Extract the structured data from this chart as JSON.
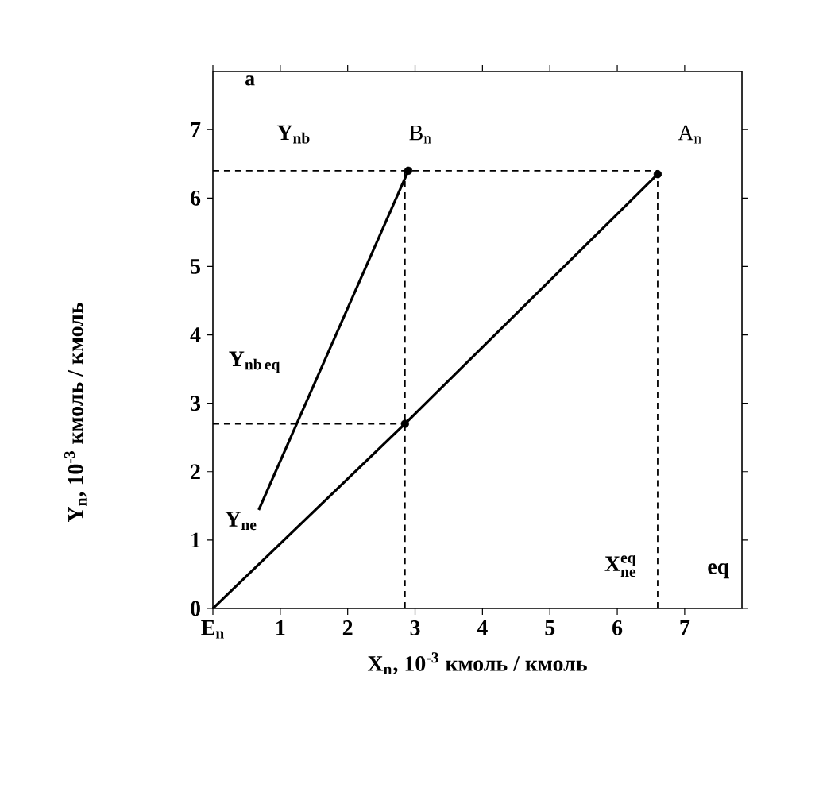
{
  "chart_data": {
    "type": "line",
    "title": "a",
    "xlabel": "X$_{n}$, 10$^{-3}$ кмоль / кмоль",
    "ylabel": "Y$_{n}$, 10$^{-3}$ кмоль / кмоль",
    "xlim": [
      0,
      7.85
    ],
    "ylim": [
      0,
      7.85
    ],
    "xticks": [
      {
        "value": 0,
        "label": "E$_{n}$"
      },
      1,
      2,
      3,
      4,
      5,
      6,
      7
    ],
    "yticks": [
      0,
      1,
      2,
      3,
      4,
      5,
      6,
      7
    ],
    "series": [
      {
        "color": "#000000",
        "x": [
          0,
          2.85,
          6.6
        ],
        "values": [
          0,
          2.7,
          6.35
        ],
        "line_style": "solid"
      },
      {
        "color": "#000000",
        "x": [
          0.68,
          2.9
        ],
        "values": [
          1.44,
          6.4
        ],
        "line_style": "solid"
      },
      {
        "color": "#000000",
        "x": [
          0,
          6.6
        ],
        "values": [
          6.4,
          6.4
        ],
        "line_style": "dashed"
      },
      {
        "color": "#000000",
        "x": [
          0,
          2.85
        ],
        "values": [
          2.7,
          2.7
        ],
        "line_style": "dashed"
      },
      {
        "color": "#000000",
        "x": [
          2.85,
          2.85
        ],
        "values": [
          0,
          6.4
        ],
        "line_style": "dashed"
      },
      {
        "color": "#000000",
        "x": [
          6.6,
          6.6
        ],
        "values": [
          0,
          6.35
        ],
        "line_style": "dashed"
      },
      {
        "type": "scatter",
        "color": "#000000",
        "x": [
          2.9,
          6.6,
          2.85
        ],
        "values": [
          6.4,
          6.35,
          2.7
        ],
        "marker": "circle"
      }
    ],
    "annotations": [
      "\\mathbf{Y}_{\\mathbf{nb}}",
      "\\mathrm{B}_{\\mathrm{n}}",
      "\\mathrm{A}_{\\mathrm{n}}",
      "\\mathbf{Y}_{\\mathbf{nb\\,eq}}",
      "\\mathbf{Y}_{\\mathbf{ne}}",
      "\\mathbf{X}_{\\mathbf{ne}}^{\\mathbf{eq}}",
      "\\mathbf{eq}"
    ]
  }
}
